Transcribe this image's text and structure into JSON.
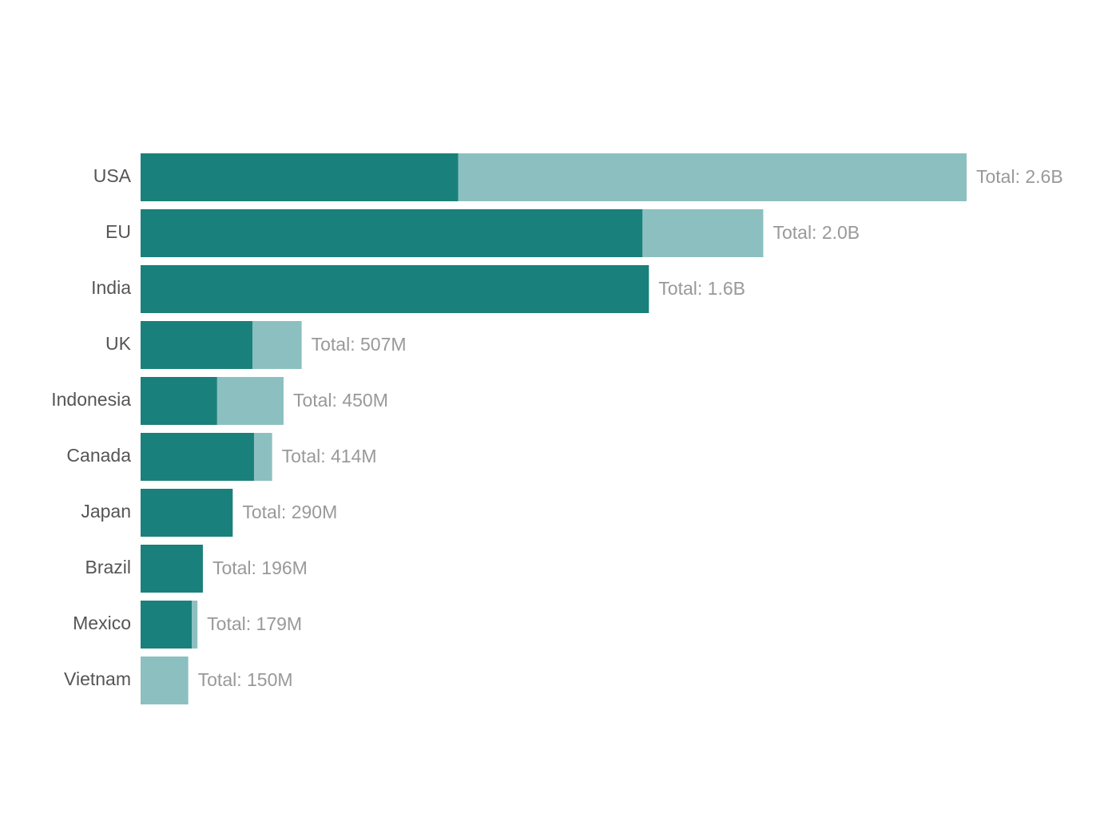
{
  "chart_data": {
    "type": "stacked-barh",
    "categories": [
      "USA",
      "EU",
      "India",
      "UK",
      "Indonesia",
      "Canada",
      "Japan",
      "Brazil",
      "Mexico",
      "Vietnam"
    ],
    "series": [
      {
        "color": "#1a807b",
        "values": [
          1000,
          1580,
          1600,
          352,
          241,
          357,
          290,
          196,
          161,
          0
        ]
      },
      {
        "color": "#8cc0c0",
        "values": [
          1600,
          380,
          0,
          155,
          209,
          57,
          0,
          0,
          18,
          150
        ]
      }
    ],
    "total_labels": [
      "Total: 2.6B",
      "Total: 2.0B",
      "Total: 1.6B",
      "Total: 507M",
      "Total: 450M",
      "Total: 414M",
      "Total: 290M",
      "Total: 196M",
      "Total: 179M",
      "Total: 150M"
    ]
  }
}
